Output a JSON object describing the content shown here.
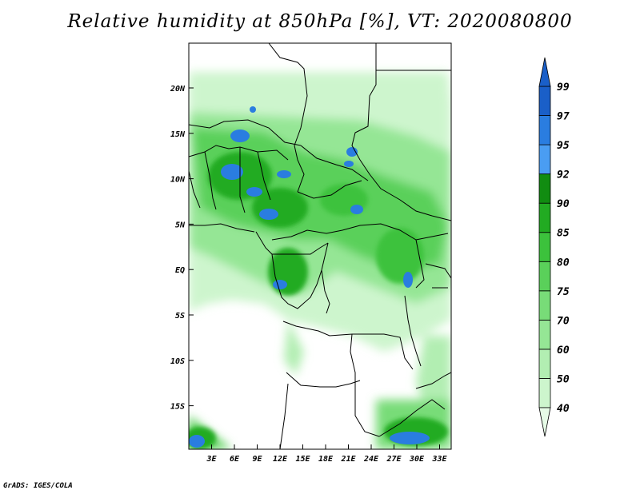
{
  "title": "Relative humidity at 850hPa [%], VT: 2020080800",
  "credit": "GrADS: IGES/COLA",
  "map": {
    "lat_ticks": [
      "20N",
      "15N",
      "10N",
      "5N",
      "EQ",
      "5S",
      "10S",
      "15S"
    ],
    "lon_ticks": [
      "3E",
      "6E",
      "9E",
      "12E",
      "15E",
      "18E",
      "21E",
      "24E",
      "27E",
      "30E",
      "33E"
    ]
  },
  "colorbar": {
    "levels": [
      "40",
      "50",
      "60",
      "70",
      "75",
      "80",
      "85",
      "90",
      "92",
      "95",
      "97",
      "99"
    ],
    "colors": [
      "#e6fbe6",
      "#cdf5cd",
      "#b2eeb2",
      "#95e695",
      "#78dc78",
      "#5ad05a",
      "#3cc23c",
      "#22ab22",
      "#118c11",
      "#4a9df2",
      "#2a7de0",
      "#1a5fc8"
    ]
  }
}
